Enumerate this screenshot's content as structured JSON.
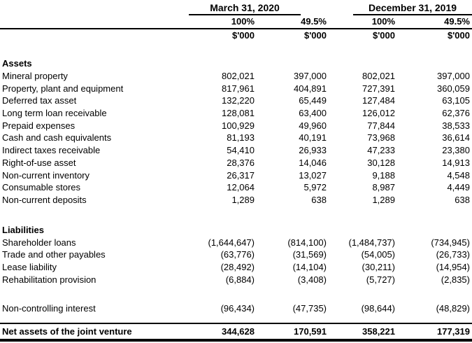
{
  "table": {
    "column_groups": [
      {
        "label": "March 31, 2020"
      },
      {
        "label": "December 31, 2019"
      }
    ],
    "percent_headers": [
      "100%",
      "49.5%",
      "100%",
      "49.5%"
    ],
    "unit_headers": [
      "$'000",
      "$'000",
      "$'000",
      "$'000"
    ],
    "sections": [
      {
        "heading": "Assets",
        "rows": [
          {
            "label": "Mineral property",
            "values": [
              "802,021",
              "397,000",
              "802,021",
              "397,000"
            ]
          },
          {
            "label": "Property, plant and equipment",
            "values": [
              "817,961",
              "404,891",
              "727,391",
              "360,059"
            ]
          },
          {
            "label": "Deferred tax asset",
            "values": [
              "132,220",
              "65,449",
              "127,484",
              "63,105"
            ]
          },
          {
            "label": "Long term loan receivable",
            "values": [
              "128,081",
              "63,400",
              "126,012",
              "62,376"
            ]
          },
          {
            "label": "Prepaid expenses",
            "values": [
              "100,929",
              "49,960",
              "77,844",
              "38,533"
            ]
          },
          {
            "label": "Cash and cash equivalents",
            "values": [
              "81,193",
              "40,191",
              "73,968",
              "36,614"
            ]
          },
          {
            "label": "Indirect taxes receivable",
            "values": [
              "54,410",
              "26,933",
              "47,233",
              "23,380"
            ]
          },
          {
            "label": "Right-of-use asset",
            "values": [
              "28,376",
              "14,046",
              "30,128",
              "14,913"
            ]
          },
          {
            "label": "Non-current inventory",
            "values": [
              "26,317",
              "13,027",
              "9,188",
              "4,548"
            ]
          },
          {
            "label": "Consumable stores",
            "values": [
              "12,064",
              "5,972",
              "8,987",
              "4,449"
            ]
          },
          {
            "label": "Non-current deposits",
            "values": [
              "1,289",
              "638",
              "1,289",
              "638"
            ]
          }
        ]
      },
      {
        "heading": "Liabilities",
        "rows": [
          {
            "label": "Shareholder loans",
            "values": [
              "(1,644,647)",
              "(814,100)",
              "(1,484,737)",
              "(734,945)"
            ]
          },
          {
            "label": "Trade and other payables",
            "values": [
              "(63,776)",
              "(31,569)",
              "(54,005)",
              "(26,733)"
            ]
          },
          {
            "label": "Lease liability",
            "values": [
              "(28,492)",
              "(14,104)",
              "(30,211)",
              "(14,954)"
            ]
          },
          {
            "label": "Rehabilitation provision",
            "values": [
              "(6,884)",
              "(3,408)",
              "(5,727)",
              "(2,835)"
            ]
          }
        ]
      }
    ],
    "other_rows": [
      {
        "label": "Non-controlling interest",
        "values": [
          "(96,434)",
          "(47,735)",
          "(98,644)",
          "(48,829)"
        ]
      }
    ],
    "total_row": {
      "label": "Net assets of the joint venture",
      "values": [
        "344,628",
        "170,591",
        "358,221",
        "177,319"
      ]
    },
    "colors": {
      "text": "#000000",
      "background": "#ffffff",
      "rule": "#000000"
    }
  }
}
